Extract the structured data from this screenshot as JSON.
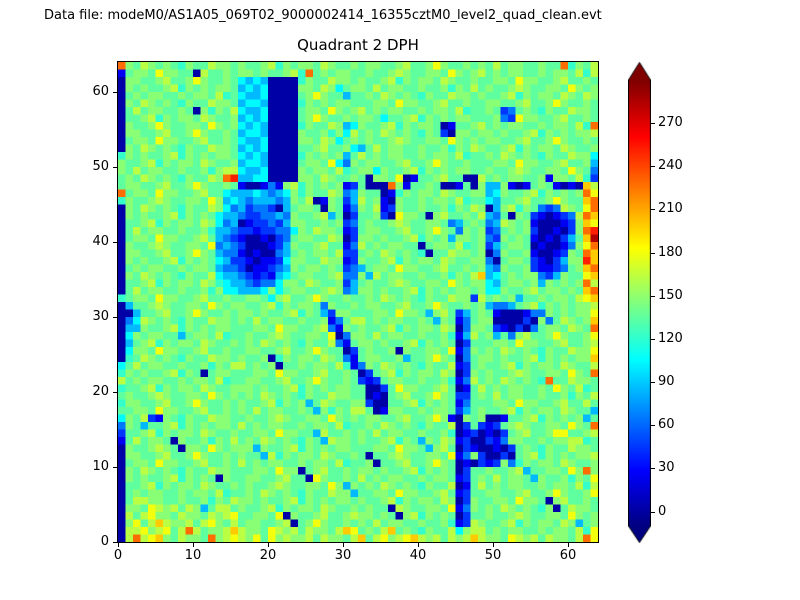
{
  "header": {
    "data_file_label": "Data file: modeM0/AS1A05_069T02_9000002414_16355cztM0_level2_quad_clean.evt"
  },
  "colors": {
    "background": "#ffffff",
    "text": "#000000",
    "frame": "#000000"
  },
  "chart_data": {
    "type": "heatmap",
    "title": "Quadrant 2 DPH",
    "xlabel": "",
    "ylabel": "",
    "x_range": [
      0,
      64
    ],
    "y_range": [
      0,
      64
    ],
    "grid_size": [
      64,
      64
    ],
    "x_ticks": [
      0,
      10,
      20,
      30,
      40,
      50,
      60
    ],
    "y_ticks": [
      0,
      10,
      20,
      30,
      40,
      50,
      60
    ],
    "colorbar": {
      "ticks": [
        0,
        30,
        60,
        90,
        120,
        150,
        180,
        210,
        240,
        270
      ],
      "vmin": -10,
      "vmax": 300,
      "colormap": "jet",
      "extend": "both"
    },
    "value_encoding": {
      "0": 2,
      "1": 25,
      "2": 45,
      "3": 65,
      "4": 85,
      "5": 105,
      "6": 122,
      "7": 135,
      "8": 148,
      "9": 163,
      "A": 180,
      "B": 200,
      "C": 228,
      "D": 252,
      "E": 285
    },
    "grid_rows_top_to_bottom": [
      "C87987876877988787789687887987787887789778A8778787978877877C6879",
      "17887A8877097787887877896C787887787789877887A8789787887787887969",
      "0887789778A877875454000068779887877896878879877877887A8877897787",
      "08787789687878874545000088798578879788778778687978778987 7887A878",
      "07878877878879675445000078A877477879878768779887877896878879 8798",
      "087987876877988745540000687878877 7887A88778977877887789778A87787",
      "0797887787086879544500007887A878978788778788796778723787 68779887",
      "07789687887987784545000078A8778788757789687878877 7832A8877897787",
      "08778A877887A8785454000068779845877896878870177897878877 8788796C",
      "0887789778A877874554000087786859787987876872088788787789 68787889",
      "07887A88778977875445000088798578787789877887A8787887789778A87787",
      "0879878768779887454500007789778547978877877868798778968788798778",
      "6878778968787887545400006878784797878877878879677879878768779885",
      "8778968788798778455400007887A5387887789778A8778777887A8877897784",
      "87978877877868995445000087887967885877896878788778778987 7887A873",
      "78798787687798CD445500008879877870887A01778977009787887781887962",
      "7887789778A8778710013189687878127000C8177870017084481017871010B9",
      "C7887A887789775444543458687798348770168788798778845877 89687878CA",
      "687789877887A84543444348790187249781087787887967754778 9778A877BC",
      "0879878768779853423320478870871387912877877868798048968732 3987AC",
      "0878778968787544322334387789470277820A887089778794370872101239CB",
      "077896878879853401223248877878237877898778873478734987810001 28BA",
      "079788778778644322122335879887127887789778A8738782378782001028CD",
      "07887A887789743210010237887798028878778968784887832878710102 47BE",
      "087789877887A34320001248778977139787887707887967824788701001 38AC",
      "0887789778A87433101003478788792278798787607798878038778100 1287CB",
      "08787789687875422101125887798812877896878879877883078872102488DB",
      "07878877878874332011234878878723478 87A887789778784387782112378BC",
      "087987876877954432121457887789338497887787786879B4578788324877AB",
      "07789687887986544323358879877824787789877887A87885478878487878C9",
      "079788778778685544458578877898348878778968787887855877897887 87BC",
      "67887A88778977877887589778A877877879878768779882978784778788 79AB",
      "047789877887A878877896878873877878877897 78A877878433478968787889",
      "0047789778A87787887877896874288777887A887489724787100013387 8788A",
      "035987876877988787978877877813799787887787487137880000208379878B",
      "044877896878788777887A887789318787789687887980388721020378 87987C",
      "0587887747887967787789877887A03887978877877861497847389778A8778A",
      "047896878879877878798787687793178878778968787027778 87A8877897789",
      "05887A88778977877887789778A87702787780877887A138787987876877988A",
      "06798787687798878778068788798731788778477 8A87037887877896878788B",
      "57978877877868799787807787887961387987876877912787789687 88798779",
      "687877896870788777887A88778977870278968788798028787789877887A87C",
      "97878877878879677887789778A877872127887787786139787987876C779887",
      "6778968788798778887877896878788770027A88778970179787887787A87967",
      "787789877887A87878798787687798877010789778A872278797887787786879",
      "6887789778A87787877896878479877882007789687871377 7887A8877897797",
      "77887A8877897787879788778748687997018877878872478778968788798774",
      "5879218768779887787789877887A8787887789778A810878001778968787847",
      "38747789687878879787887787887967787987876877902721278987 7887A87C",
      "277896878879877877887A887749778787978877877860120102789778AA7789",
      "17978870877868797879878768749887877896874879812002138877 87889967",
      "087789870887A878884877896878788777887A88748970210010278768779887",
      "0887789778A877878774968788798778707789877887A1382002078968787889",
      "07887A887789778797878877878879677807789778A870102128368788798778",
      "087987876877988777887A8807897787887877896878702778778947 7887A8C8",
      "08787789687870877887789770A877879787887787887127879788748778687A",
      "0778968788798778787789877887A848787987876877901797878877 87887969",
      "0787887787887967787987876877988477887A88778971277887789778A8778A",
      "0799887787786879887877896878788787789687887980287 7887A8870897787",
      "0887A989798479978778968788798778787709877887A1387879878768079887",
      "0979A8879887989A77887A08778977898878708968787027787789877887A878",
      "08A79B988979A8797887789078A877878797887787786129877896878879 8478",
      "099A89A79C97889B9887A989798879BA7879B78768779589978788778788796A",
      "09C9AB879887C89A98A7A89889798879B79A89AB9897989B9887A989798879CA"
    ]
  }
}
